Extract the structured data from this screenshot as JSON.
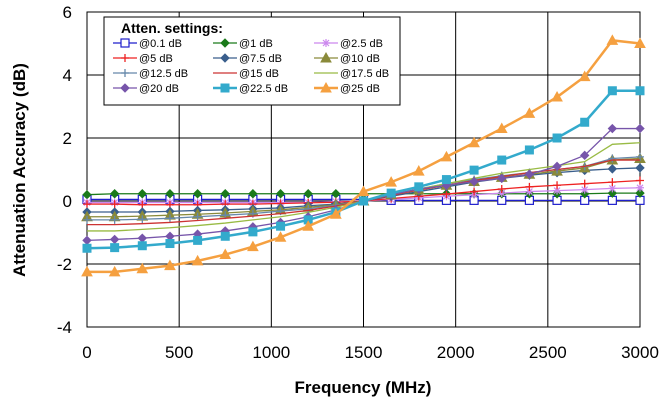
{
  "chart_data": {
    "type": "line",
    "xlabel": "Frequency (MHz)",
    "ylabel": "Attenuation Accuracy (dB)",
    "xlim": [
      0,
      3000
    ],
    "ylim": [
      -4,
      6
    ],
    "xticks": [
      0,
      500,
      1000,
      1500,
      2000,
      2500,
      3000
    ],
    "yticks": [
      -4,
      -2,
      0,
      2,
      4,
      6
    ],
    "grid": true,
    "legend_title": "Atten. settings:",
    "legend_placement": "top-left",
    "x": [
      0,
      150,
      300,
      450,
      600,
      750,
      900,
      1050,
      1200,
      1350,
      1500,
      1650,
      1800,
      1950,
      2100,
      2250,
      2400,
      2550,
      2700,
      2850,
      3000
    ],
    "series": [
      {
        "name": "@0.1 dB",
        "color": "#1f1fcc",
        "marker": "square-open",
        "values": [
          0.05,
          0.05,
          0.05,
          0.05,
          0.05,
          0.05,
          0.05,
          0.05,
          0.05,
          0.05,
          0.05,
          0.02,
          0.02,
          0.02,
          0.02,
          0.02,
          0.02,
          0.02,
          0.02,
          0.02,
          0.02
        ]
      },
      {
        "name": "@1 dB",
        "color": "#1a7a1a",
        "marker": "diamond",
        "values": [
          0.2,
          0.23,
          0.23,
          0.23,
          0.23,
          0.23,
          0.23,
          0.23,
          0.23,
          0.23,
          0.23,
          0.23,
          0.23,
          0.23,
          0.23,
          0.23,
          0.23,
          0.23,
          0.23,
          0.25,
          0.25
        ]
      },
      {
        "name": "@2.5 dB",
        "color": "#cc88ee",
        "marker": "star",
        "values": [
          -0.05,
          -0.05,
          -0.05,
          -0.05,
          -0.05,
          -0.05,
          -0.05,
          -0.05,
          -0.05,
          -0.02,
          0.0,
          0.05,
          0.1,
          0.15,
          0.2,
          0.25,
          0.3,
          0.33,
          0.36,
          0.4,
          0.42
        ]
      },
      {
        "name": "@5 dB",
        "color": "#ee2222",
        "marker": "plus",
        "values": [
          -0.1,
          -0.1,
          -0.12,
          -0.12,
          -0.12,
          -0.1,
          -0.1,
          -0.08,
          -0.06,
          -0.04,
          0.0,
          0.08,
          0.15,
          0.22,
          0.3,
          0.38,
          0.45,
          0.5,
          0.55,
          0.6,
          0.65
        ]
      },
      {
        "name": "@7.5 dB",
        "color": "#3a5e8c",
        "marker": "diamond",
        "values": [
          -0.35,
          -0.35,
          -0.35,
          -0.33,
          -0.3,
          -0.28,
          -0.25,
          -0.22,
          -0.15,
          -0.1,
          0.0,
          0.15,
          0.3,
          0.45,
          0.6,
          0.72,
          0.82,
          0.9,
          0.97,
          1.02,
          1.05
        ]
      },
      {
        "name": "@10 dB",
        "color": "#8a8a3a",
        "marker": "triangle",
        "values": [
          -0.5,
          -0.5,
          -0.48,
          -0.45,
          -0.42,
          -0.38,
          -0.33,
          -0.28,
          -0.2,
          -0.12,
          0.0,
          0.2,
          0.35,
          0.5,
          0.62,
          0.75,
          0.85,
          0.95,
          1.05,
          1.3,
          1.35
        ]
      },
      {
        "name": "@12.5 dB",
        "color": "#6688aa",
        "marker": "plus",
        "values": [
          -0.6,
          -0.6,
          -0.58,
          -0.55,
          -0.5,
          -0.45,
          -0.4,
          -0.32,
          -0.25,
          -0.14,
          0.0,
          0.2,
          0.38,
          0.55,
          0.68,
          0.8,
          0.9,
          1.0,
          1.1,
          1.35,
          1.4
        ]
      },
      {
        "name": "@15 dB",
        "color": "#cc3333",
        "marker": "none",
        "values": [
          -0.75,
          -0.75,
          -0.72,
          -0.68,
          -0.62,
          -0.55,
          -0.48,
          -0.4,
          -0.3,
          -0.16,
          0.0,
          0.18,
          0.35,
          0.5,
          0.65,
          0.78,
          0.9,
          1.0,
          1.1,
          1.3,
          1.3
        ]
      },
      {
        "name": "@17.5 dB",
        "color": "#99bb44",
        "marker": "none",
        "values": [
          -0.95,
          -0.95,
          -0.9,
          -0.85,
          -0.78,
          -0.7,
          -0.6,
          -0.5,
          -0.36,
          -0.2,
          0.0,
          0.2,
          0.38,
          0.55,
          0.72,
          0.88,
          1.0,
          1.12,
          1.25,
          1.8,
          1.85
        ]
      },
      {
        "name": "@20 dB",
        "color": "#7755aa",
        "marker": "diamond",
        "values": [
          -1.25,
          -1.22,
          -1.18,
          -1.12,
          -1.05,
          -0.95,
          -0.82,
          -0.68,
          -0.5,
          -0.28,
          0.0,
          0.2,
          0.38,
          0.5,
          0.62,
          0.72,
          0.85,
          1.1,
          1.45,
          2.3,
          2.3
        ]
      },
      {
        "name": "@22.5 dB",
        "color": "#33aacc",
        "marker": "square",
        "values": [
          -1.5,
          -1.48,
          -1.42,
          -1.35,
          -1.25,
          -1.12,
          -0.98,
          -0.8,
          -0.6,
          -0.35,
          0.0,
          0.25,
          0.45,
          0.68,
          0.98,
          1.3,
          1.62,
          2.0,
          2.5,
          3.5,
          3.5
        ]
      },
      {
        "name": "@25 dB",
        "color": "#f5a040",
        "marker": "triangle",
        "values": [
          -2.25,
          -2.25,
          -2.15,
          -2.05,
          -1.9,
          -1.7,
          -1.45,
          -1.15,
          -0.8,
          -0.42,
          0.3,
          0.6,
          0.95,
          1.4,
          1.85,
          2.3,
          2.78,
          3.3,
          3.95,
          5.1,
          5.0
        ]
      }
    ]
  }
}
